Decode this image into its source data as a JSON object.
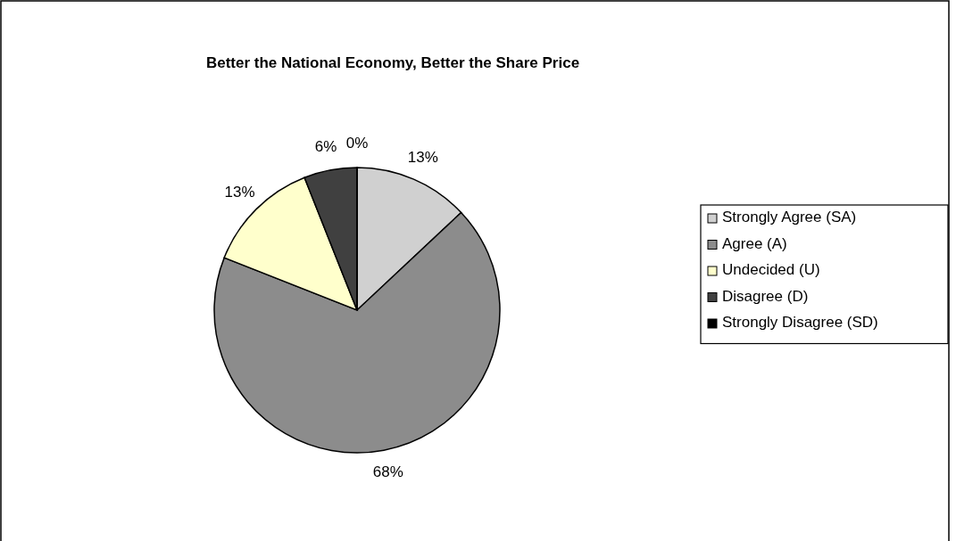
{
  "chart_data": {
    "type": "pie",
    "title": "Better the National Economy, Better the Share Price",
    "categories": [
      "Strongly Agree (SA)",
      "Agree (A)",
      "Undecided (U)",
      "Disagree (D)",
      "Strongly Disagree (SD)"
    ],
    "values": [
      13,
      68,
      13,
      6,
      0
    ],
    "colors": [
      "#d0d0d0",
      "#8c8c8c",
      "#ffffcc",
      "#404040",
      "#000000"
    ],
    "value_labels": [
      "13%",
      "68%",
      "13%",
      "6%",
      "0%"
    ],
    "legend": "right"
  }
}
